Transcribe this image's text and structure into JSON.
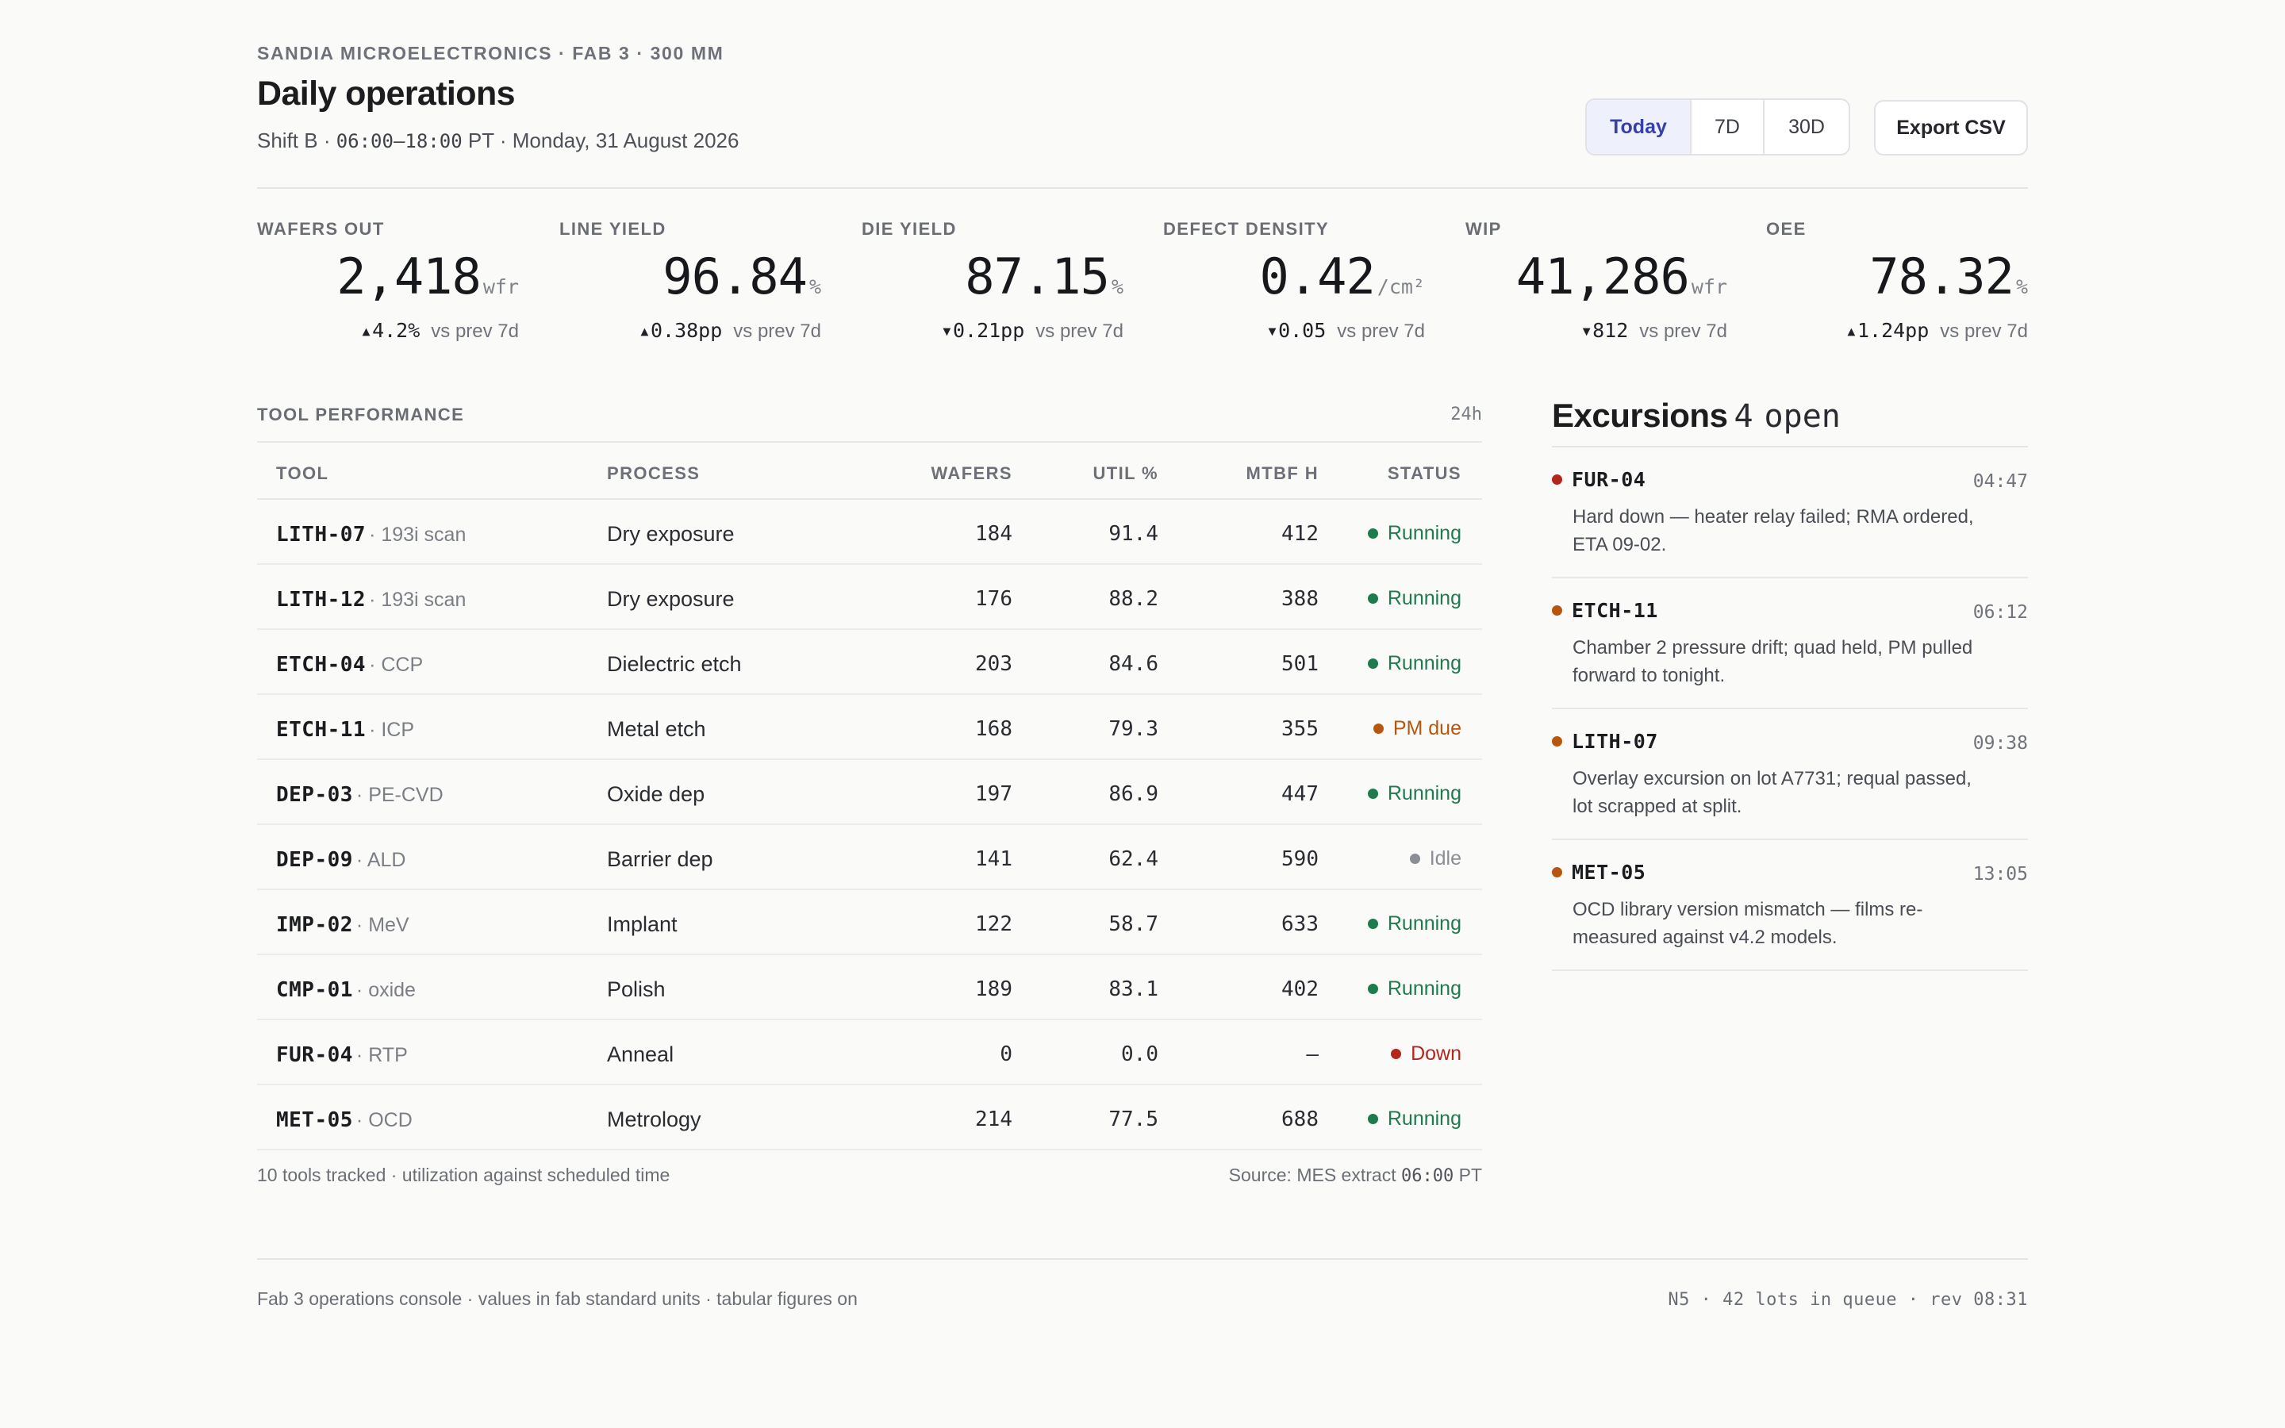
{
  "header": {
    "eyebrow": "SANDIA MICROELECTRONICS · FAB 3 · 300 MM",
    "title": "Daily operations",
    "subtitle_shift": "Shift B · ",
    "subtitle_time": "06:00–18:00",
    "subtitle_rest": " PT · Monday, 31 August 2026",
    "ranges": [
      {
        "label": "Today",
        "active": true
      },
      {
        "label": "7D",
        "active": false
      },
      {
        "label": "30D",
        "active": false
      }
    ],
    "export_label": "Export CSV"
  },
  "kpis": [
    {
      "label": "WAFERS OUT",
      "value": "2,418",
      "unit": "wfr",
      "delta": "▴4.2%",
      "vs": "vs prev 7d"
    },
    {
      "label": "LINE YIELD",
      "value": "96.84",
      "unit": "%",
      "delta": "▴0.38pp",
      "vs": "vs prev 7d"
    },
    {
      "label": "DIE YIELD",
      "value": "87.15",
      "unit": "%",
      "delta": "▾0.21pp",
      "vs": "vs prev 7d"
    },
    {
      "label": "DEFECT DENSITY",
      "value": "0.42",
      "unit": "/cm²",
      "delta": "▾0.05",
      "vs": "vs prev 7d"
    },
    {
      "label": "WIP",
      "value": "41,286",
      "unit": "wfr",
      "delta": "▾812",
      "vs": "vs prev 7d"
    },
    {
      "label": "OEE",
      "value": "78.32",
      "unit": "%",
      "delta": "▴1.24pp",
      "vs": "vs prev 7d"
    }
  ],
  "tool_performance": {
    "label": "TOOL PERFORMANCE",
    "window": "24h",
    "columns": [
      "TOOL",
      "PROCESS",
      "WAFERS",
      "UTIL %",
      "MTBF H",
      "STATUS"
    ],
    "rows": [
      {
        "tool": "LITH-07",
        "sub": "· 193i scan",
        "process": "Dry exposure",
        "wafers": "184",
        "util": "91.4",
        "mtbf": "412",
        "status": "Running",
        "status_color": "#1f7a4d"
      },
      {
        "tool": "LITH-12",
        "sub": "· 193i scan",
        "process": "Dry exposure",
        "wafers": "176",
        "util": "88.2",
        "mtbf": "388",
        "status": "Running",
        "status_color": "#1f7a4d"
      },
      {
        "tool": "ETCH-04",
        "sub": "· CCP",
        "process": "Dielectric etch",
        "wafers": "203",
        "util": "84.6",
        "mtbf": "501",
        "status": "Running",
        "status_color": "#1f7a4d"
      },
      {
        "tool": "ETCH-11",
        "sub": "· ICP",
        "process": "Metal etch",
        "wafers": "168",
        "util": "79.3",
        "mtbf": "355",
        "status": "PM due",
        "status_color": "#b8560f"
      },
      {
        "tool": "DEP-03",
        "sub": "· PE-CVD",
        "process": "Oxide dep",
        "wafers": "197",
        "util": "86.9",
        "mtbf": "447",
        "status": "Running",
        "status_color": "#1f7a4d"
      },
      {
        "tool": "DEP-09",
        "sub": "· ALD",
        "process": "Barrier dep",
        "wafers": "141",
        "util": "62.4",
        "mtbf": "590",
        "status": "Idle",
        "status_color": "#8b8e95"
      },
      {
        "tool": "IMP-02",
        "sub": "· MeV",
        "process": "Implant",
        "wafers": "122",
        "util": "58.7",
        "mtbf": "633",
        "status": "Running",
        "status_color": "#1f7a4d"
      },
      {
        "tool": "CMP-01",
        "sub": "· oxide",
        "process": "Polish",
        "wafers": "189",
        "util": "83.1",
        "mtbf": "402",
        "status": "Running",
        "status_color": "#1f7a4d"
      },
      {
        "tool": "FUR-04",
        "sub": "· RTP",
        "process": "Anneal",
        "wafers": "0",
        "util": "0.0",
        "mtbf": "—",
        "status": "Down",
        "status_color": "#b3261e"
      },
      {
        "tool": "MET-05",
        "sub": "· OCD",
        "process": "Metrology",
        "wafers": "214",
        "util": "77.5",
        "mtbf": "688",
        "status": "Running",
        "status_color": "#1f7a4d"
      }
    ],
    "footnote": "10 tools tracked · utilization against scheduled time",
    "source_prefix": "Source: MES extract ",
    "source_time": "06:00",
    "source_suffix": " PT"
  },
  "excursions": {
    "title": "Excursions",
    "count": "4",
    "open_label": "open",
    "items": [
      {
        "tool": "FUR-04",
        "time": "04:47",
        "color": "#b3261e",
        "desc": "Hard down — heater relay failed; RMA ordered, ETA 09-02."
      },
      {
        "tool": "ETCH-11",
        "time": "06:12",
        "color": "#b8560f",
        "desc": "Chamber 2 pressure drift; quad held, PM pulled forward to tonight."
      },
      {
        "tool": "LITH-07",
        "time": "09:38",
        "color": "#b8560f",
        "desc": "Overlay excursion on lot A7731; requal passed, lot scrapped at split."
      },
      {
        "tool": "MET-05",
        "time": "13:05",
        "color": "#b8560f",
        "desc": "OCD library version mismatch — films re-measured against v4.2 models."
      }
    ]
  },
  "footer": {
    "left": "Fab 3 operations console · values in fab standard units · tabular figures on",
    "right": "N5 · 42 lots in queue · rev 08:31"
  }
}
